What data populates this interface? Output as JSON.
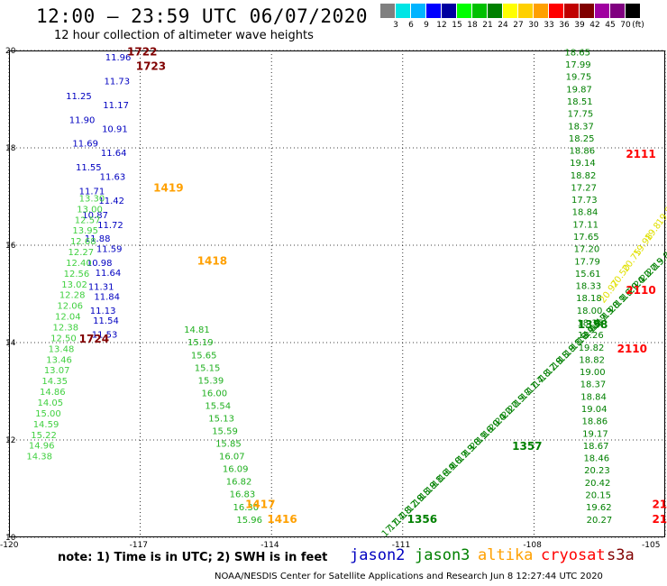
{
  "header": {
    "title": "12:00 – 23:59 UTC 06/07/2020",
    "subtitle": "12 hour collection of altimeter wave heights"
  },
  "legend": {
    "labels": [
      "",
      "3",
      "6",
      "9",
      "12",
      "15",
      "18",
      "21",
      "24",
      "27",
      "30",
      "33",
      "36",
      "39",
      "42",
      "45",
      "70",
      "(ft)"
    ],
    "colors": [
      "#808080",
      "#00e5e5",
      "#00b4ff",
      "#0000ff",
      "#0000a0",
      "#00ff00",
      "#00c000",
      "#008000",
      "#ffff00",
      "#ffd000",
      "#ffa000",
      "#ff0000",
      "#c00000",
      "#800000",
      "#a000a0",
      "#800080",
      "#000000"
    ]
  },
  "map": {
    "lon_min": -120,
    "lon_max": -105,
    "lat_min": 10,
    "lat_max": 20,
    "lon_ticks": [
      "-120",
      "-117",
      "-114",
      "-111",
      "-108",
      "-105"
    ],
    "lat_ticks": [
      "10",
      "12",
      "14",
      "16",
      "18",
      "20"
    ],
    "lon_tick_values": [
      -120,
      -117,
      -114,
      -111,
      -108,
      -105
    ],
    "lat_tick_values": [
      10,
      12,
      14,
      16,
      18,
      20
    ]
  },
  "tracks": {
    "west_blue": {
      "color": "#0000c0",
      "lon": [
        -118.7,
        -118.3,
        -118.1,
        -117.8
      ],
      "lat": [
        19.0,
        16.4,
        14.0,
        19.8
      ],
      "values": [
        "11.25",
        "11.90",
        "11.69",
        "11.55",
        "11.71",
        "10.87",
        "11.88",
        "10.98",
        "11.31",
        "11.13",
        "11.53",
        "11.54",
        "11.84",
        "11.64",
        "11.59",
        "11.72",
        "11.42",
        "11.63",
        "11.64",
        "10.91",
        "11.17",
        "11.73",
        "11.96"
      ]
    },
    "west_green_1": {
      "color": "#40d040",
      "lon": [
        -118.4,
        -119.6
      ],
      "lat": [
        16.9,
        11.6
      ],
      "values": [
        "13.30",
        "13.00",
        "12.57",
        "13.95",
        "12.68",
        "12.27",
        "12.40",
        "12.56",
        "13.02",
        "12.28",
        "12.06",
        "12.04",
        "12.38",
        "12.50",
        "13.48",
        "13.46",
        "13.07",
        "14.35",
        "14.86",
        "14.05",
        "15.00",
        "14.59",
        "15.22",
        "14.96",
        "14.38"
      ]
    },
    "west_green_2": {
      "color": "#20b020",
      "lon": [
        -116.0,
        -114.8
      ],
      "lat": [
        14.2,
        10.3
      ],
      "values": [
        "14.81",
        "15.19",
        "15.65",
        "15.15",
        "15.39",
        "16.00",
        "15.54",
        "15.13",
        "15.59",
        "15.85",
        "16.07",
        "16.09",
        "16.82",
        "16.83",
        "16.30",
        "15.96"
      ]
    },
    "east_column": {
      "color": "#008000",
      "lon": [
        -107.3,
        -106.8
      ],
      "lat": [
        19.9,
        10.3
      ],
      "values": [
        "18.65",
        "17.99",
        "19.75",
        "19.87",
        "18.51",
        "17.75",
        "18.37",
        "18.25",
        "18.86",
        "19.14",
        "18.82",
        "17.27",
        "17.73",
        "18.84",
        "17.11",
        "17.65",
        "17.20",
        "17.79",
        "15.61",
        "18.33",
        "18.18",
        "18.00",
        "18.35",
        "18.26",
        "19.82",
        "18.82",
        "19.00",
        "18.37",
        "18.84",
        "19.04",
        "18.86",
        "19.17",
        "18.67",
        "18.46",
        "20.23",
        "20.42",
        "20.15",
        "19.62",
        "20.27"
      ]
    },
    "diag_track": {
      "color": "#008000",
      "lon": [
        -111.4,
        -105.2
      ],
      "lat": [
        10.0,
        15.5
      ],
      "count": 30,
      "values": [
        "17.1",
        "17.4",
        "17.8",
        "18.2",
        "17.9",
        "18.5",
        "18.8",
        "19.1",
        "18.6",
        "19.4",
        "19.0",
        "18.7",
        "19.3",
        "19.8",
        "20.1",
        "19.6",
        "19.9",
        "20.4",
        "20.2",
        "20.7",
        "20.5",
        "19.8"
      ]
    },
    "diag_yellow": {
      "color": "#e0e000",
      "lon": [
        -106.4,
        -105.1
      ],
      "lat": [
        14.8,
        16.4
      ],
      "values": [
        "20.97",
        "20.50",
        "20.75",
        "19.98",
        "19.8",
        "19.8"
      ]
    }
  },
  "times": [
    {
      "text": "1722",
      "lon": -117.3,
      "lat": 19.9,
      "color": "#800000"
    },
    {
      "text": "1723",
      "lon": -117.1,
      "lat": 19.6,
      "color": "#800000"
    },
    {
      "text": "1419",
      "lon": -116.7,
      "lat": 17.1,
      "color": "#ffa000"
    },
    {
      "text": "1724",
      "lon": -118.4,
      "lat": 14.0,
      "color": "#800000"
    },
    {
      "text": "1418",
      "lon": -115.7,
      "lat": 15.6,
      "color": "#ffa000"
    },
    {
      "text": "1417",
      "lon": -114.6,
      "lat": 10.6,
      "color": "#ffa000"
    },
    {
      "text": "1416",
      "lon": -114.1,
      "lat": 10.3,
      "color": "#ffa000"
    },
    {
      "text": "2111",
      "lon": -105.9,
      "lat": 17.8,
      "color": "#ff0000"
    },
    {
      "text": "2110",
      "lon": -105.9,
      "lat": 15.0,
      "color": "#ff0000"
    },
    {
      "text": "2110",
      "lon": -106.1,
      "lat": 13.8,
      "color": "#ff0000"
    },
    {
      "text": "1358",
      "lon": -107.0,
      "lat": 14.3,
      "color": "#008000"
    },
    {
      "text": "1357",
      "lon": -108.5,
      "lat": 11.8,
      "color": "#008000"
    },
    {
      "text": "1356",
      "lon": -110.9,
      "lat": 10.3,
      "color": "#008000"
    },
    {
      "text": "21",
      "lon": -105.3,
      "lat": 10.6,
      "color": "#ff0000"
    },
    {
      "text": "21",
      "lon": -105.3,
      "lat": 10.3,
      "color": "#ff0000"
    }
  ],
  "footer": {
    "note": "note:  1) Time is in UTC;  2) SWH is in feet",
    "satellites": [
      {
        "name": "jason2",
        "color": "#0000c0",
        "left": 388
      },
      {
        "name": "jason3",
        "color": "#008000",
        "left": 460
      },
      {
        "name": "altika",
        "color": "#ffa000",
        "left": 530
      },
      {
        "name": "cryosat",
        "color": "#ff0000",
        "left": 600
      },
      {
        "name": "s3a",
        "color": "#800000",
        "left": 673
      }
    ],
    "credit": "NOAA/NESDIS Center for Satellite Applications and Research     Jun  8 12:27:44 UTC 2020"
  }
}
